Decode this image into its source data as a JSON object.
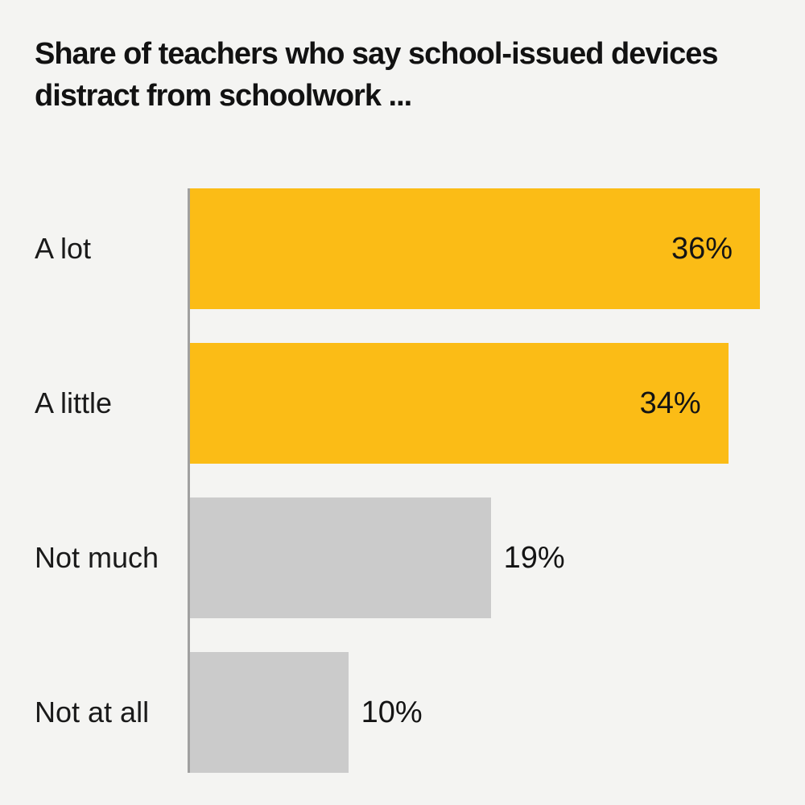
{
  "page": {
    "background_color": "#F4F4F2",
    "text_color": "#141414"
  },
  "chart_data": {
    "type": "bar",
    "orientation": "horizontal",
    "title": "Share of teachers who say school-issued devices distract from schoolwork ...",
    "title_lines": [
      "Share of teachers who say school-issued devices",
      "distract from schoolwork ..."
    ],
    "categories": [
      "A lot",
      "A little",
      "Not much",
      "Not at all"
    ],
    "values": [
      36,
      34,
      19,
      10
    ],
    "value_labels": [
      "36%",
      "34%",
      "19%",
      "10%"
    ],
    "xlim": [
      0,
      36
    ],
    "xlabel": "",
    "ylabel": "",
    "grid": false,
    "legend": false,
    "bar_colors": [
      "#FBBC16",
      "#FBBC16",
      "#CBCBCB",
      "#CBCBCB"
    ],
    "highlight_color": "#FBBC16",
    "muted_color": "#CBCBCB",
    "axis_line_color": "#A0A0A0",
    "value_label_inside": [
      true,
      true,
      false,
      false
    ]
  }
}
